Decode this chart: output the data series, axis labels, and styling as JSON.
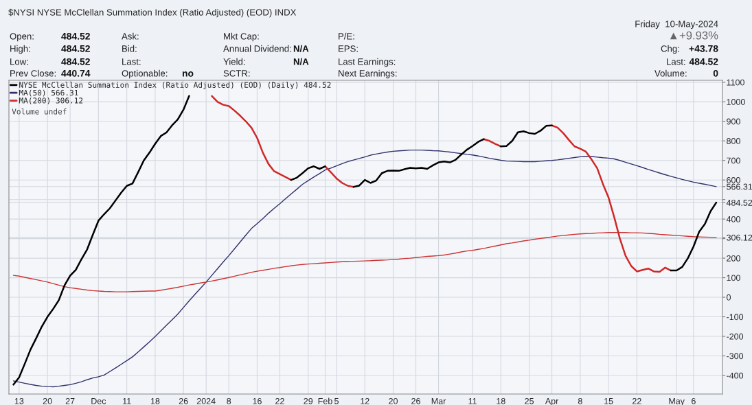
{
  "chart_data": {
    "type": "line",
    "title": "$NYSI NYSE McClellan Summation Index (Ratio Adjusted) (EOD) INDX",
    "categories": [
      null,
      "13",
      null,
      null,
      null,
      null,
      "20",
      null,
      null,
      null,
      "27",
      null,
      null,
      null,
      null,
      "Dec",
      null,
      null,
      null,
      null,
      "11",
      null,
      null,
      null,
      null,
      "18",
      null,
      null,
      null,
      null,
      "26",
      null,
      null,
      null,
      "2024",
      null,
      null,
      null,
      "8",
      null,
      null,
      null,
      null,
      "16",
      null,
      null,
      null,
      "22",
      null,
      null,
      null,
      null,
      "29",
      null,
      null,
      "Feb",
      null,
      "5",
      null,
      null,
      null,
      null,
      "12",
      null,
      null,
      null,
      null,
      "20",
      null,
      null,
      null,
      "26",
      null,
      null,
      null,
      "Mar",
      null,
      null,
      null,
      null,
      null,
      "11",
      null,
      null,
      null,
      null,
      "18",
      null,
      null,
      null,
      null,
      "25",
      null,
      null,
      null,
      "Apr",
      null,
      null,
      null,
      null,
      "8",
      null,
      null,
      null,
      null,
      "15",
      null,
      null,
      null,
      null,
      "22",
      null,
      null,
      null,
      null,
      null,
      null,
      "May",
      null,
      null,
      "6",
      null,
      null,
      null,
      null
    ],
    "series": [
      {
        "name": "NYSE McClellan Summation Index (Ratio Adjusted) (EOD) (Daily) 484.52",
        "color": "#000000",
        "values": [
          -447,
          -410,
          -340,
          -268,
          -210,
          -150,
          -100,
          -60,
          -15,
          60,
          110,
          140,
          195,
          245,
          320,
          392,
          425,
          455,
          495,
          535,
          570,
          582,
          640,
          700,
          740,
          785,
          825,
          843,
          880,
          910,
          960,
          1030,
          null,
          null,
          null,
          null,
          null,
          null,
          null,
          null,
          null,
          null,
          null,
          null,
          null,
          null,
          null,
          null,
          null,
          600,
          612,
          635,
          660,
          670,
          657,
          670,
          null,
          null,
          null,
          null,
          565,
          571,
          600,
          585,
          597,
          635,
          647,
          648,
          647,
          655,
          662,
          660,
          662,
          657,
          675,
          690,
          695,
          690,
          703,
          730,
          755,
          774,
          795,
          809,
          null,
          null,
          772,
          774,
          800,
          844,
          849,
          840,
          836,
          852,
          877,
          879,
          null,
          null,
          null,
          null,
          null,
          null,
          null,
          null,
          null,
          null,
          null,
          null,
          null,
          null,
          null,
          null,
          null,
          null,
          null,
          null,
          137,
          137,
          155,
          200,
          260,
          336,
          375,
          440,
          484.52
        ]
      },
      {
        "color": "#d02828",
        "values": [
          null,
          null,
          null,
          null,
          null,
          null,
          null,
          null,
          null,
          null,
          null,
          null,
          null,
          null,
          null,
          null,
          null,
          null,
          null,
          null,
          null,
          null,
          null,
          null,
          null,
          null,
          null,
          null,
          null,
          null,
          null,
          null,
          null,
          null,
          null,
          1030,
          1000,
          985,
          978,
          955,
          929,
          900,
          867,
          815,
          740,
          682,
          645,
          630,
          615,
          600,
          null,
          null,
          null,
          null,
          null,
          670,
          640,
          608,
          585,
          570,
          565,
          null,
          null,
          null,
          null,
          null,
          null,
          null,
          null,
          null,
          null,
          null,
          null,
          null,
          null,
          null,
          null,
          null,
          null,
          null,
          null,
          null,
          null,
          809,
          800,
          785,
          772,
          null,
          null,
          null,
          null,
          null,
          null,
          null,
          null,
          879,
          868,
          840,
          805,
          772,
          760,
          745,
          705,
          660,
          580,
          510,
          410,
          300,
          212,
          160,
          132,
          140,
          147,
          132,
          130,
          152,
          137,
          null,
          null,
          null,
          null,
          null,
          null,
          null,
          null
        ]
      },
      {
        "name": "MA(50) 566.31",
        "color": "#30306a",
        "values": [
          -428,
          -434,
          -440,
          -446,
          -451,
          -455,
          -457,
          -458,
          -455,
          -451,
          -447,
          -440,
          -432,
          -422,
          -413,
          -407,
          -398,
          -380,
          -362,
          -343,
          -324,
          -305,
          -280,
          -254,
          -228,
          -201,
          -172,
          -143,
          -115,
          -86,
          -52,
          -18,
          14,
          46,
          78,
          112,
          146,
          180,
          213,
          248,
          283,
          318,
          352,
          377,
          402,
          430,
          455,
          479,
          504,
          529,
          553,
          578,
          597,
          615,
          633,
          651,
          661,
          672,
          684,
          694,
          702,
          710,
          718,
          727,
          733,
          738,
          743,
          747,
          749,
          751,
          753,
          753,
          753,
          752,
          750,
          749,
          746,
          743,
          739,
          735,
          731,
          728,
          723,
          717,
          711,
          706,
          701,
          697,
          696,
          695,
          694,
          694,
          694,
          696,
          698,
          700,
          703,
          707,
          711,
          715,
          719,
          720,
          720,
          717,
          714,
          712,
          708,
          700,
          691,
          682,
          673,
          664,
          654,
          645,
          636,
          627,
          619,
          611,
          603,
          596,
          589,
          583,
          578,
          572,
          566.31
        ]
      },
      {
        "name": "MA(200) 306.12",
        "color": "#cc3333",
        "values": [
          112,
          108,
          102,
          96,
          90,
          84,
          78,
          70,
          62,
          54,
          49,
          45,
          41,
          37,
          34,
          32,
          30,
          29,
          28,
          28,
          28,
          29,
          30,
          31,
          32,
          32,
          36,
          41,
          46,
          51,
          57,
          63,
          68,
          73,
          78,
          83,
          89,
          95,
          101,
          108,
          115,
          121,
          128,
          133,
          138,
          143,
          148,
          152,
          157,
          161,
          165,
          168,
          170,
          172,
          174,
          176,
          178,
          180,
          182,
          183,
          184,
          185,
          186,
          187,
          189,
          190,
          191,
          193,
          195,
          198,
          200,
          203,
          206,
          209,
          211,
          213,
          216,
          221,
          226,
          232,
          237,
          240,
          245,
          250,
          256,
          262,
          268,
          274,
          278,
          283,
          288,
          292,
          297,
          301,
          305,
          309,
          313,
          316,
          319,
          322,
          324,
          326,
          327,
          329,
          330,
          331,
          331,
          331,
          331,
          330,
          330,
          329,
          327,
          325,
          322,
          320,
          318,
          316,
          314,
          312,
          310,
          309,
          308,
          307,
          306.12
        ]
      }
    ],
    "ylim": [
      -495,
      1110
    ],
    "yticks": [
      -400,
      -300,
      -200,
      -100,
      0,
      100,
      200,
      {
        "value": 300,
        "label": null
      },
      400,
      {
        "value": 500,
        "label": null
      },
      600,
      700,
      800,
      900,
      1000,
      1100,
      {
        "value": 566.31,
        "label": "566.31"
      },
      {
        "value": 484.52,
        "label": "484.52"
      },
      {
        "value": 306.12,
        "label": "306.12"
      }
    ],
    "grid": true,
    "legend": "top left",
    "annotations": [
      "Friday  10-May-2024",
      "Open:",
      "484.52",
      "Ask:",
      "Mkt Cap:",
      "P/E:",
      "▲+9.93%",
      "High:",
      "484.52",
      "Bid:",
      "Annual Dividend:",
      "N/A",
      "EPS:",
      "Chg:",
      "+43.78",
      "Low:",
      "484.52",
      "Last:",
      "Yield:",
      "N/A",
      "Last Earnings:",
      "Last:",
      "484.52",
      "Prev Close:",
      "440.74",
      "Optionable:",
      "no",
      "SCTR:",
      "Next Earnings:",
      "Volume:",
      "0",
      "Volume undef"
    ]
  }
}
